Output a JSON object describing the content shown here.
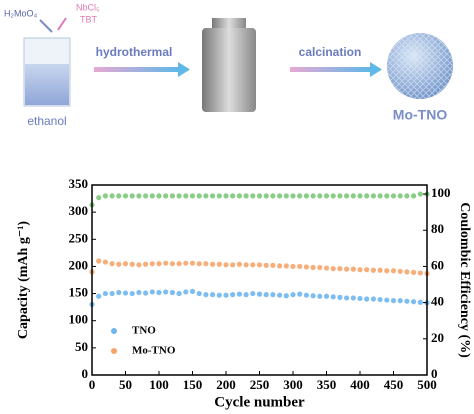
{
  "schematic": {
    "reagent_left": "H₂MoO₄",
    "reagent_right_1": "NbCl₅",
    "reagent_right_2": "TBT",
    "step_1": "hydrothermal",
    "step_2": "calcination",
    "solvent": "ethanol",
    "product": "Mo-TNO"
  },
  "chart_data": {
    "type": "scatter",
    "xlabel": "Cycle number",
    "ylabel": "Capacity (mAh g⁻¹)",
    "y2label": "Coulombic Efficiency (%)",
    "xlim": [
      0,
      500
    ],
    "xticks": [
      0,
      50,
      100,
      150,
      200,
      250,
      300,
      350,
      400,
      450,
      500
    ],
    "ylim": [
      0,
      350
    ],
    "yticks": [
      0,
      50,
      100,
      150,
      200,
      250,
      300,
      350
    ],
    "y2lim": [
      0,
      105
    ],
    "y2ticks": [
      0,
      20,
      40,
      60,
      80,
      100
    ],
    "legend": "lower left",
    "x": [
      0,
      10,
      20,
      30,
      40,
      50,
      60,
      70,
      80,
      90,
      100,
      110,
      120,
      130,
      140,
      150,
      160,
      170,
      180,
      190,
      200,
      210,
      220,
      230,
      240,
      250,
      260,
      270,
      280,
      290,
      300,
      310,
      320,
      330,
      340,
      350,
      360,
      370,
      380,
      390,
      400,
      410,
      420,
      430,
      440,
      450,
      460,
      470,
      480,
      490,
      500
    ],
    "series": [
      {
        "name": "TNO",
        "color": "#6fb6ee",
        "values": [
          130,
          145,
          150,
          150,
          152,
          151,
          150,
          152,
          151,
          153,
          152,
          153,
          152,
          150,
          153,
          154,
          150,
          148,
          148,
          147,
          147,
          148,
          149,
          148,
          150,
          149,
          148,
          148,
          147,
          146,
          148,
          149,
          147,
          146,
          145,
          145,
          144,
          143,
          142,
          142,
          141,
          140,
          140,
          139,
          138,
          137,
          137,
          136,
          135,
          134,
          133
        ]
      },
      {
        "name": "Mo-TNO",
        "color": "#f5a56c",
        "values": [
          190,
          210,
          208,
          205,
          204,
          205,
          204,
          203,
          204,
          205,
          205,
          206,
          205,
          205,
          206,
          206,
          205,
          205,
          204,
          204,
          203,
          203,
          204,
          203,
          203,
          203,
          202,
          202,
          201,
          201,
          200,
          200,
          199,
          198,
          198,
          197,
          196,
          196,
          195,
          195,
          194,
          194,
          193,
          193,
          192,
          192,
          191,
          190,
          189,
          188,
          187
        ]
      },
      {
        "color": "#7cc87a",
        "axis": "y2",
        "values": [
          94,
          98,
          99,
          99,
          99,
          99,
          99,
          99,
          99,
          99,
          99,
          99,
          99,
          99,
          99,
          99,
          99,
          99,
          99,
          99,
          99,
          99,
          99,
          99,
          99,
          99,
          99,
          99,
          99,
          99,
          99,
          99,
          99,
          99,
          99,
          99,
          99,
          99,
          99,
          99,
          99,
          99,
          99,
          99,
          99,
          99,
          99,
          99,
          99,
          100,
          100
        ]
      }
    ]
  }
}
